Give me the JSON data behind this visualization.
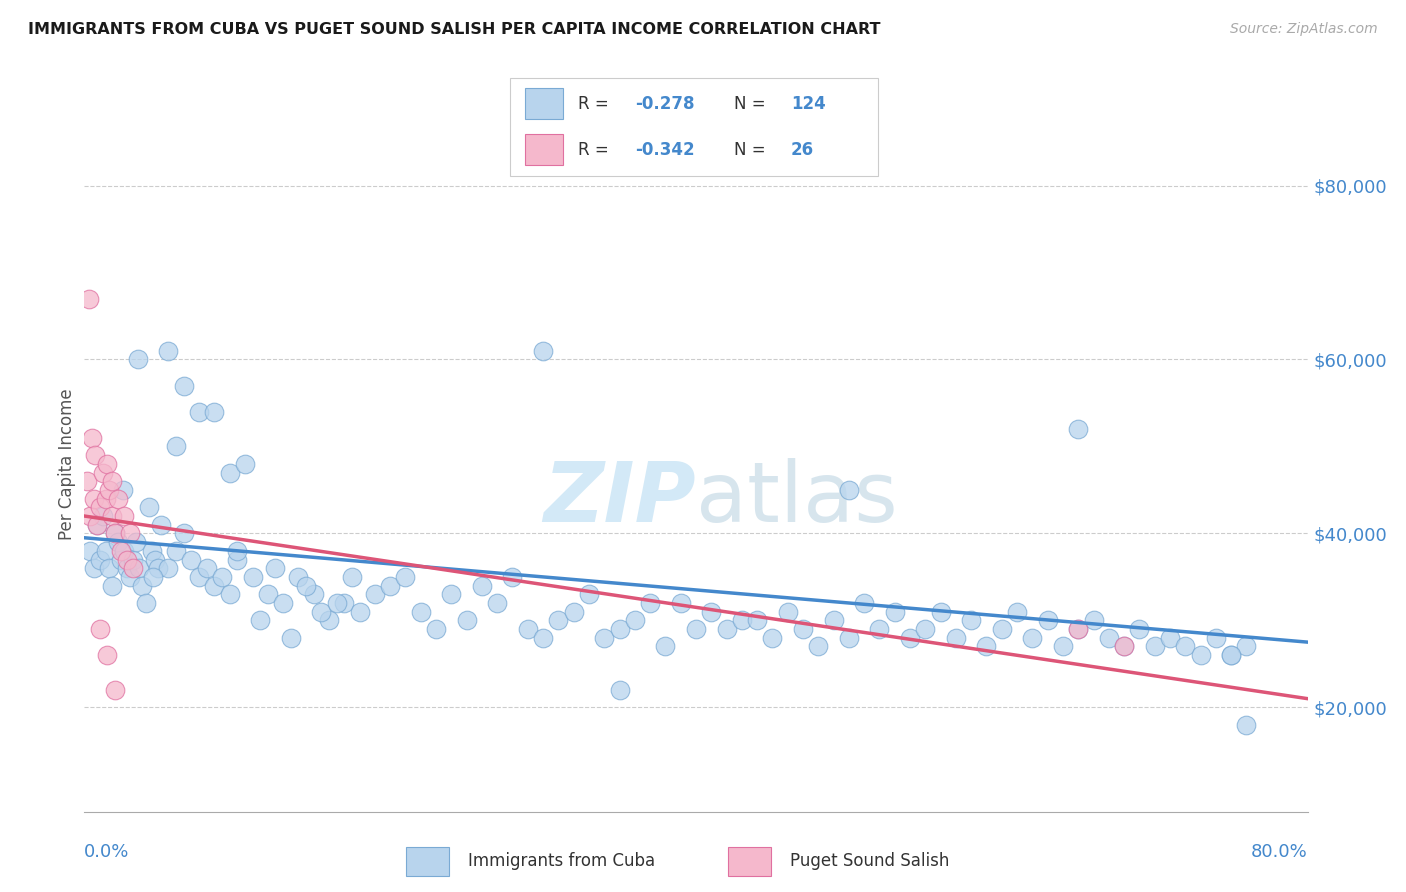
{
  "title": "IMMIGRANTS FROM CUBA VS PUGET SOUND SALISH PER CAPITA INCOME CORRELATION CHART",
  "source": "Source: ZipAtlas.com",
  "ylabel": "Per Capita Income",
  "yticks": [
    20000,
    40000,
    60000,
    80000
  ],
  "ytick_labels": [
    "$20,000",
    "$40,000",
    "$60,000",
    "$80,000"
  ],
  "xmin": 0.0,
  "xmax": 0.8,
  "ymin": 8000,
  "ymax": 88000,
  "series1_label": "Immigrants from Cuba",
  "series2_label": "Puget Sound Salish",
  "series1_face": "#b8d4ed",
  "series1_edge": "#7aaad4",
  "series2_face": "#f5b8cc",
  "series2_edge": "#e070a0",
  "trendline1_color": "#4488cc",
  "trendline2_color": "#dd5577",
  "right_label_color": "#4488cc",
  "watermark_color": "#d8ecf8",
  "blue_scatter_x": [
    0.004,
    0.006,
    0.008,
    0.01,
    0.012,
    0.014,
    0.016,
    0.018,
    0.02,
    0.022,
    0.024,
    0.026,
    0.028,
    0.03,
    0.032,
    0.034,
    0.036,
    0.038,
    0.04,
    0.042,
    0.044,
    0.046,
    0.048,
    0.05,
    0.055,
    0.06,
    0.065,
    0.07,
    0.075,
    0.08,
    0.085,
    0.09,
    0.095,
    0.1,
    0.11,
    0.12,
    0.13,
    0.14,
    0.15,
    0.16,
    0.17,
    0.18,
    0.19,
    0.2,
    0.21,
    0.22,
    0.23,
    0.24,
    0.25,
    0.26,
    0.27,
    0.28,
    0.29,
    0.3,
    0.31,
    0.32,
    0.33,
    0.34,
    0.35,
    0.36,
    0.37,
    0.38,
    0.39,
    0.4,
    0.41,
    0.42,
    0.43,
    0.44,
    0.45,
    0.46,
    0.47,
    0.48,
    0.49,
    0.5,
    0.51,
    0.52,
    0.53,
    0.54,
    0.55,
    0.56,
    0.57,
    0.58,
    0.59,
    0.6,
    0.61,
    0.62,
    0.63,
    0.64,
    0.65,
    0.66,
    0.67,
    0.68,
    0.69,
    0.7,
    0.71,
    0.72,
    0.73,
    0.74,
    0.75,
    0.76,
    0.025,
    0.035,
    0.045,
    0.055,
    0.065,
    0.075,
    0.085,
    0.095,
    0.105,
    0.115,
    0.125,
    0.135,
    0.145,
    0.155,
    0.165,
    0.175,
    0.3,
    0.35,
    0.5,
    0.65,
    0.75,
    0.76,
    0.06,
    0.1
  ],
  "blue_scatter_y": [
    38000,
    36000,
    41000,
    37000,
    42000,
    38000,
    36000,
    34000,
    40000,
    39000,
    37000,
    38000,
    36000,
    35000,
    37000,
    39000,
    36000,
    34000,
    32000,
    43000,
    38000,
    37000,
    36000,
    41000,
    36000,
    38000,
    40000,
    37000,
    35000,
    36000,
    34000,
    35000,
    33000,
    37000,
    35000,
    33000,
    32000,
    35000,
    33000,
    30000,
    32000,
    31000,
    33000,
    34000,
    35000,
    31000,
    29000,
    33000,
    30000,
    34000,
    32000,
    35000,
    29000,
    28000,
    30000,
    31000,
    33000,
    28000,
    29000,
    30000,
    32000,
    27000,
    32000,
    29000,
    31000,
    29000,
    30000,
    30000,
    28000,
    31000,
    29000,
    27000,
    30000,
    28000,
    32000,
    29000,
    31000,
    28000,
    29000,
    31000,
    28000,
    30000,
    27000,
    29000,
    31000,
    28000,
    30000,
    27000,
    29000,
    30000,
    28000,
    27000,
    29000,
    27000,
    28000,
    27000,
    26000,
    28000,
    26000,
    27000,
    45000,
    60000,
    35000,
    61000,
    57000,
    54000,
    54000,
    47000,
    48000,
    30000,
    36000,
    28000,
    34000,
    31000,
    32000,
    35000,
    61000,
    22000,
    45000,
    52000,
    26000,
    18000,
    50000,
    38000
  ],
  "pink_scatter_x": [
    0.002,
    0.003,
    0.004,
    0.005,
    0.006,
    0.007,
    0.008,
    0.01,
    0.012,
    0.014,
    0.016,
    0.018,
    0.02,
    0.022,
    0.024,
    0.026,
    0.028,
    0.03,
    0.032,
    0.015,
    0.018,
    0.01,
    0.015,
    0.02,
    0.65,
    0.68
  ],
  "pink_scatter_y": [
    46000,
    67000,
    42000,
    51000,
    44000,
    49000,
    41000,
    43000,
    47000,
    44000,
    45000,
    42000,
    40000,
    44000,
    38000,
    42000,
    37000,
    40000,
    36000,
    48000,
    46000,
    29000,
    26000,
    22000,
    29000,
    27000
  ],
  "trendline1_x0": 0.0,
  "trendline1_x1": 0.8,
  "trendline1_y0": 39500,
  "trendline1_y1": 27500,
  "trendline2_x0": 0.0,
  "trendline2_x1": 0.8,
  "trendline2_y0": 42000,
  "trendline2_y1": 21000,
  "legend_r1": "-0.278",
  "legend_n1": "124",
  "legend_r2": "-0.342",
  "legend_n2": "26"
}
